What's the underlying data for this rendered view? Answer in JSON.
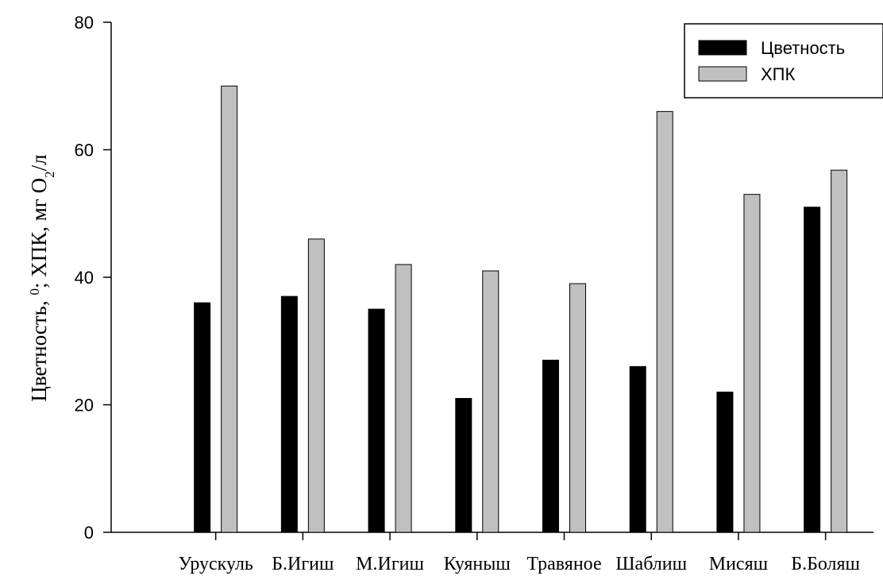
{
  "chart_data": {
    "type": "bar",
    "categories": [
      "Урускуль",
      "Б.Игиш",
      "М.Игиш",
      "Куяныш",
      "Травяное",
      "Шаблиш",
      "Мисяш",
      "Б.Боляш"
    ],
    "series": [
      {
        "name": "Цветность",
        "color": "#000000",
        "values": [
          36,
          37,
          35,
          21,
          27,
          26,
          22,
          51
        ]
      },
      {
        "name": "ХПК",
        "color": "#c0c0c0",
        "values": [
          70,
          46,
          42,
          41,
          39,
          66,
          53,
          56.8
        ]
      }
    ],
    "ylabel": {
      "main": "Цветность, ",
      "sup_degree": "0",
      "mid": "; ХПК, мг О",
      "sub": "2",
      "end": "/л"
    },
    "ylim": [
      0,
      80
    ],
    "yticks": [
      0,
      20,
      40,
      60,
      80
    ],
    "grid": false,
    "legend_position": "top-right"
  }
}
